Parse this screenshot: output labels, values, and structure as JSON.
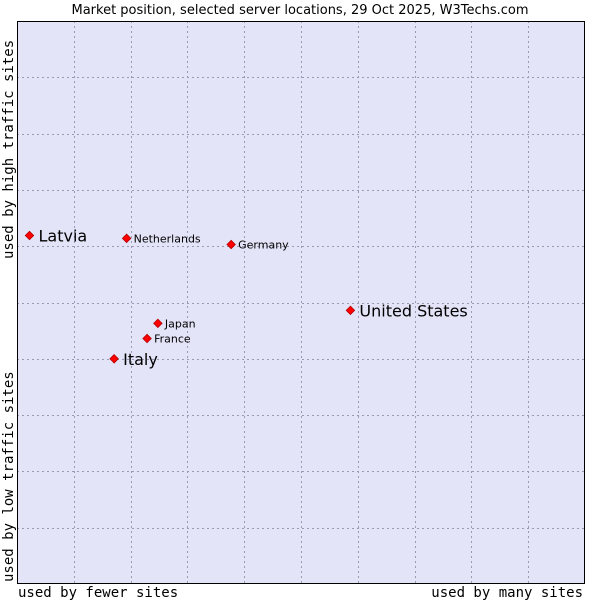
{
  "chart_data": {
    "type": "scatter",
    "title": "Market position, selected server locations, 29 Oct 2025, W3Techs.com",
    "xlabel_left": "used by fewer sites",
    "xlabel_right": "used by many sites",
    "ylabel_bottom": "used by low traffic sites",
    "ylabel_top": "used by high traffic sites",
    "xlim": [
      0,
      100
    ],
    "ylim": [
      0,
      100
    ],
    "grid": true,
    "colors": {
      "background": "#e4e4f8",
      "point": "#ff0000",
      "point_stroke": "#b00000",
      "grid": "#9a9ab4"
    },
    "points": [
      {
        "name": "Latvia",
        "x": 2.2,
        "y": 61.9,
        "label_size": "large"
      },
      {
        "name": "Netherlands",
        "x": 19.3,
        "y": 61.4,
        "label_size": "small"
      },
      {
        "name": "Germany",
        "x": 37.7,
        "y": 60.3,
        "label_size": "small"
      },
      {
        "name": "United States",
        "x": 58.7,
        "y": 48.6,
        "label_size": "large"
      },
      {
        "name": "Japan",
        "x": 24.8,
        "y": 46.3,
        "label_size": "small"
      },
      {
        "name": "France",
        "x": 22.9,
        "y": 43.6,
        "label_size": "small"
      },
      {
        "name": "Italy",
        "x": 17.1,
        "y": 40.0,
        "label_size": "large"
      }
    ]
  }
}
